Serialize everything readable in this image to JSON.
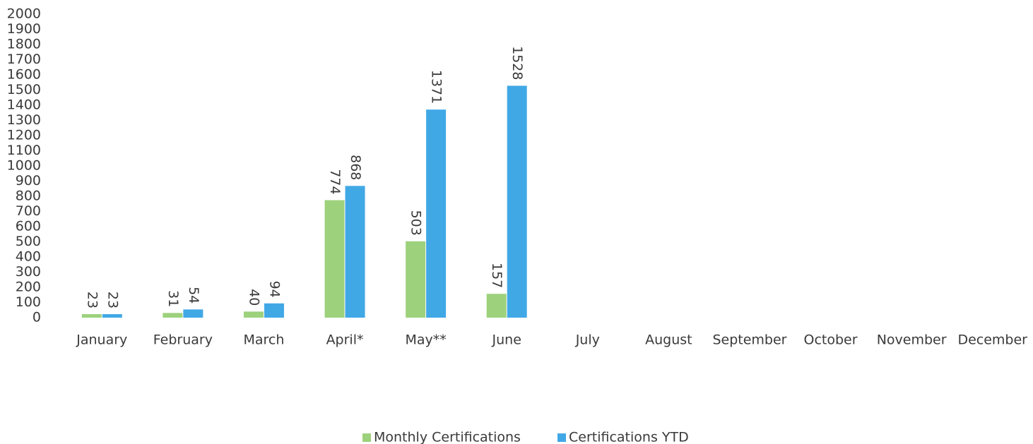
{
  "chart_data": {
    "type": "bar",
    "categories": [
      "January",
      "February",
      "March",
      "April*",
      "May**",
      "June",
      "July",
      "August",
      "September",
      "October",
      "November",
      "December"
    ],
    "series": [
      {
        "name": "Monthly Certifications",
        "color": "#9dd17c",
        "values": [
          23,
          31,
          40,
          774,
          503,
          157,
          null,
          null,
          null,
          null,
          null,
          null
        ]
      },
      {
        "name": "Certifications YTD",
        "color": "#41a8e6",
        "values": [
          23,
          54,
          94,
          868,
          1371,
          1528,
          null,
          null,
          null,
          null,
          null,
          null
        ]
      }
    ],
    "ylim": [
      0,
      2000
    ],
    "yticks": [
      0,
      100,
      200,
      300,
      400,
      500,
      600,
      700,
      800,
      900,
      1000,
      1100,
      1200,
      1300,
      1400,
      1500,
      1600,
      1700,
      1800,
      1900,
      2000
    ],
    "grid": false,
    "legend": "bottom"
  }
}
